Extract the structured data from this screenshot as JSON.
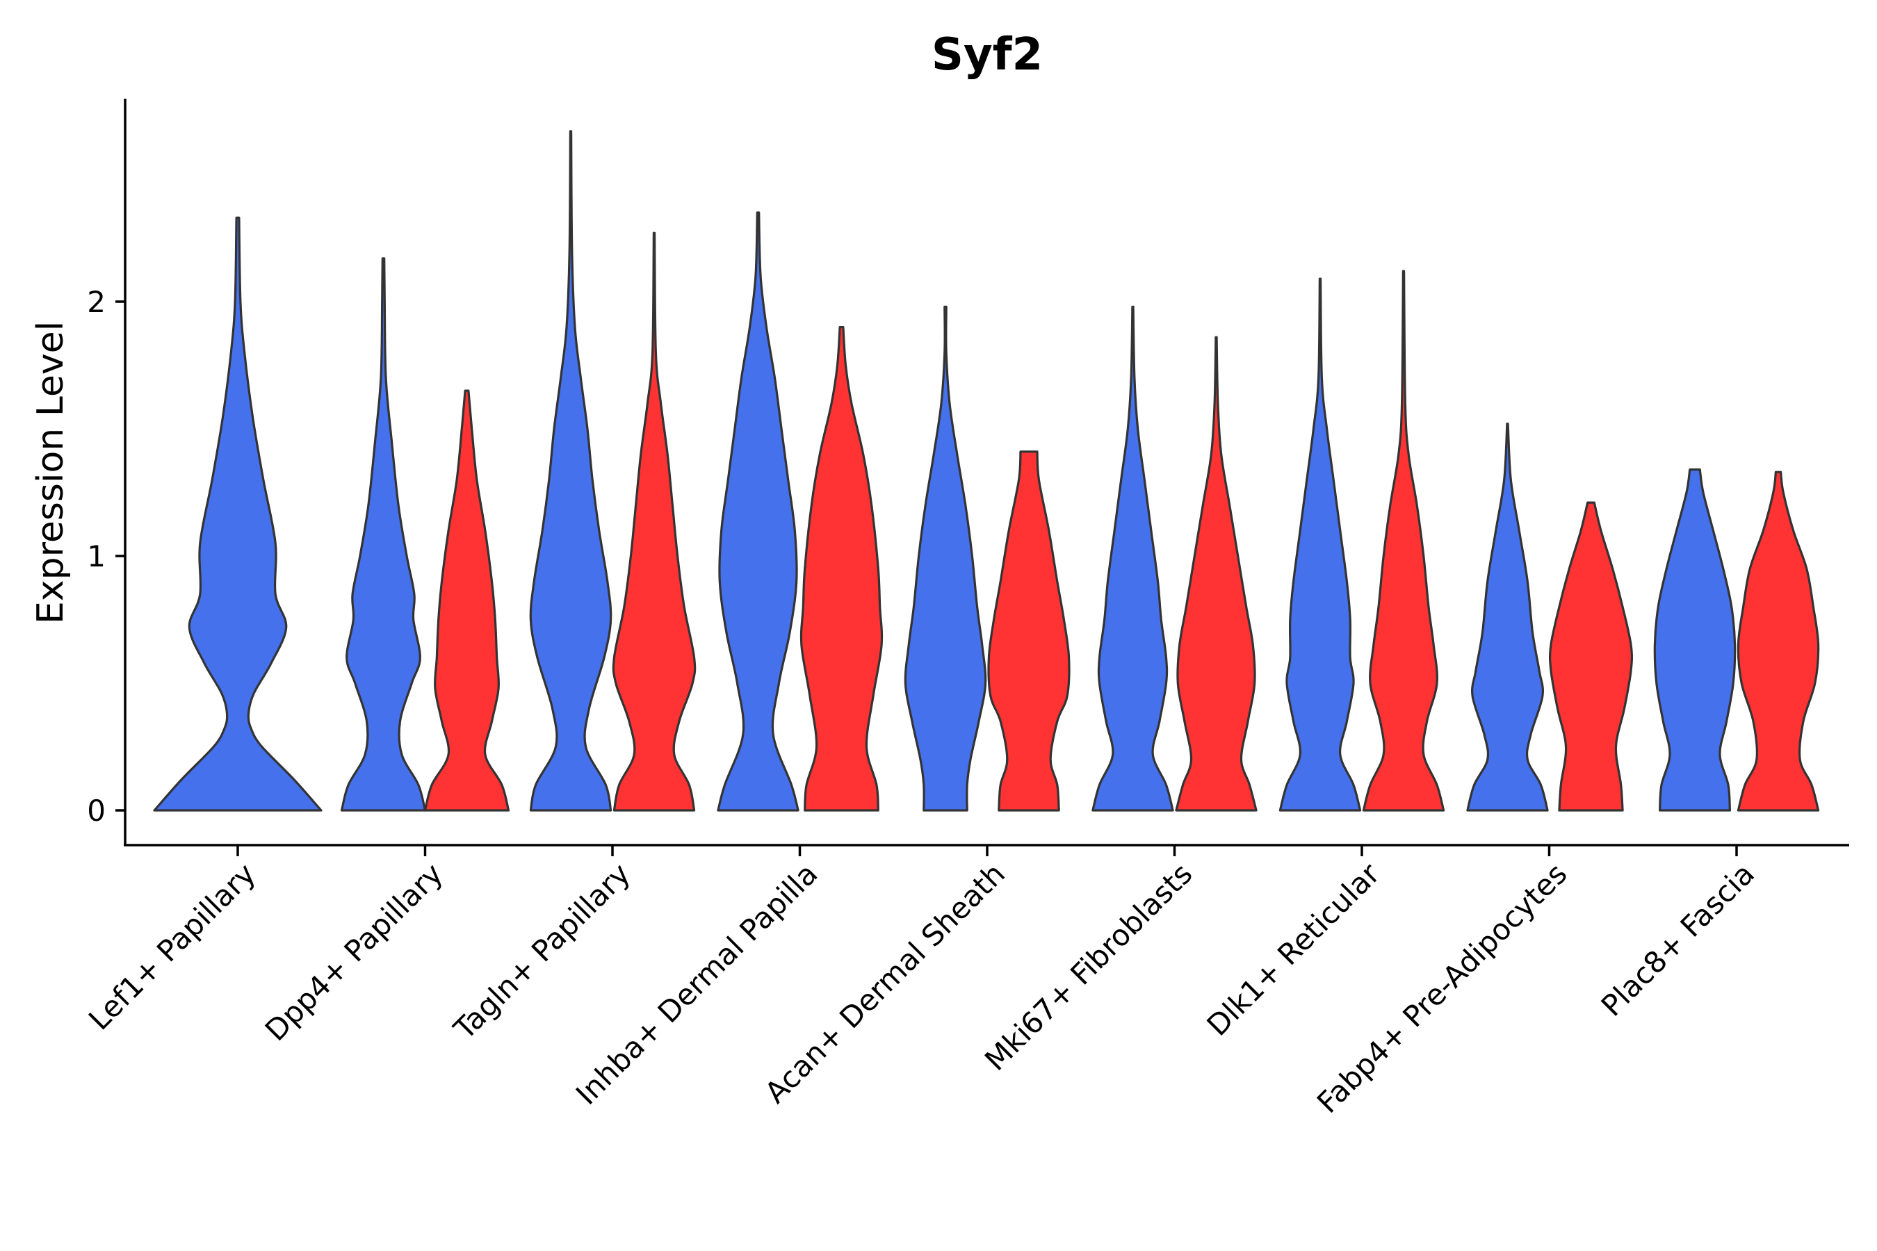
{
  "chart_data": {
    "type": "violin",
    "title": "Syf2",
    "xlabel": "",
    "ylabel": "Expression Level",
    "ylim": [
      -0.135,
      2.8
    ],
    "yticks": [
      0,
      1,
      2
    ],
    "grid": false,
    "legend": "none",
    "colors": {
      "group1": "#4571EC",
      "group2": "#FF3333",
      "outline": "#333333"
    },
    "categories": [
      "Lef1+ Papillary",
      "Dpp4+ Papillary",
      "Tagln+ Papillary",
      "Inhba+ Dermal Papilla",
      "Acan+ Dermal Sheath",
      "Mki67+ Fibroblasts",
      "Dlk1+ Reticular",
      "Fabp4+ Pre-Adipocytes",
      "Plac8+ Fascia"
    ],
    "violins": [
      {
        "category": "Lef1+ Papillary",
        "group": "group1",
        "max": 2.33,
        "profile": [
          [
            0,
            0.62
          ],
          [
            0.12,
            0.42
          ],
          [
            0.25,
            0.18
          ],
          [
            0.32,
            0.1
          ],
          [
            0.38,
            0.08
          ],
          [
            0.46,
            0.12
          ],
          [
            0.58,
            0.25
          ],
          [
            0.72,
            0.36
          ],
          [
            0.85,
            0.28
          ],
          [
            1.05,
            0.28
          ],
          [
            1.3,
            0.19
          ],
          [
            1.55,
            0.11
          ],
          [
            1.8,
            0.05
          ],
          [
            2.0,
            0.02
          ],
          [
            2.33,
            0.01
          ]
        ]
      },
      {
        "category": "Dpp4+ Papillary",
        "group": "group1",
        "max": 2.17,
        "profile": [
          [
            0,
            0.5
          ],
          [
            0.1,
            0.42
          ],
          [
            0.22,
            0.22
          ],
          [
            0.35,
            0.2
          ],
          [
            0.5,
            0.34
          ],
          [
            0.6,
            0.44
          ],
          [
            0.75,
            0.36
          ],
          [
            0.85,
            0.37
          ],
          [
            1.0,
            0.28
          ],
          [
            1.2,
            0.18
          ],
          [
            1.45,
            0.1
          ],
          [
            1.7,
            0.03
          ],
          [
            2.0,
            0.015
          ],
          [
            2.17,
            0.01
          ]
        ]
      },
      {
        "category": "Dpp4+ Papillary",
        "group": "group2",
        "max": 1.65,
        "profile": [
          [
            0,
            0.5
          ],
          [
            0.1,
            0.42
          ],
          [
            0.22,
            0.22
          ],
          [
            0.35,
            0.3
          ],
          [
            0.48,
            0.38
          ],
          [
            0.6,
            0.36
          ],
          [
            0.75,
            0.34
          ],
          [
            0.9,
            0.3
          ],
          [
            1.1,
            0.22
          ],
          [
            1.3,
            0.12
          ],
          [
            1.5,
            0.06
          ],
          [
            1.65,
            0.02
          ]
        ]
      },
      {
        "category": "Tagln+ Papillary",
        "group": "group1",
        "max": 2.67,
        "profile": [
          [
            0,
            0.48
          ],
          [
            0.1,
            0.42
          ],
          [
            0.25,
            0.18
          ],
          [
            0.4,
            0.22
          ],
          [
            0.6,
            0.4
          ],
          [
            0.75,
            0.48
          ],
          [
            0.9,
            0.44
          ],
          [
            1.1,
            0.34
          ],
          [
            1.3,
            0.26
          ],
          [
            1.5,
            0.2
          ],
          [
            1.7,
            0.12
          ],
          [
            1.9,
            0.05
          ],
          [
            2.2,
            0.015
          ],
          [
            2.67,
            0.005
          ]
        ]
      },
      {
        "category": "Tagln+ Papillary",
        "group": "group2",
        "max": 2.27,
        "profile": [
          [
            0,
            0.48
          ],
          [
            0.1,
            0.42
          ],
          [
            0.22,
            0.24
          ],
          [
            0.35,
            0.3
          ],
          [
            0.5,
            0.46
          ],
          [
            0.6,
            0.48
          ],
          [
            0.8,
            0.36
          ],
          [
            1.0,
            0.28
          ],
          [
            1.2,
            0.22
          ],
          [
            1.4,
            0.16
          ],
          [
            1.6,
            0.08
          ],
          [
            1.8,
            0.02
          ],
          [
            2.27,
            0.005
          ]
        ]
      },
      {
        "category": "Inhba+ Dermal Papilla",
        "group": "group1",
        "max": 2.35,
        "profile": [
          [
            0,
            0.48
          ],
          [
            0.1,
            0.4
          ],
          [
            0.3,
            0.18
          ],
          [
            0.5,
            0.25
          ],
          [
            0.7,
            0.38
          ],
          [
            0.9,
            0.46
          ],
          [
            1.1,
            0.44
          ],
          [
            1.3,
            0.36
          ],
          [
            1.5,
            0.28
          ],
          [
            1.7,
            0.2
          ],
          [
            1.9,
            0.1
          ],
          [
            2.1,
            0.03
          ],
          [
            2.35,
            0.01
          ]
        ]
      },
      {
        "category": "Inhba+ Dermal Papilla",
        "group": "group2",
        "max": 1.9,
        "profile": [
          [
            0,
            0.44
          ],
          [
            0.1,
            0.42
          ],
          [
            0.25,
            0.3
          ],
          [
            0.45,
            0.38
          ],
          [
            0.65,
            0.48
          ],
          [
            0.8,
            0.46
          ],
          [
            0.95,
            0.44
          ],
          [
            1.2,
            0.36
          ],
          [
            1.4,
            0.26
          ],
          [
            1.6,
            0.12
          ],
          [
            1.75,
            0.05
          ],
          [
            1.9,
            0.02
          ]
        ]
      },
      {
        "category": "Acan+ Dermal Sheath",
        "group": "group1",
        "max": 1.98,
        "profile": [
          [
            0,
            0.26
          ],
          [
            0.1,
            0.26
          ],
          [
            0.2,
            0.3
          ],
          [
            0.35,
            0.4
          ],
          [
            0.5,
            0.48
          ],
          [
            0.65,
            0.44
          ],
          [
            0.8,
            0.38
          ],
          [
            1.0,
            0.32
          ],
          [
            1.2,
            0.24
          ],
          [
            1.4,
            0.14
          ],
          [
            1.6,
            0.05
          ],
          [
            1.8,
            0.01
          ],
          [
            1.98,
            0.01
          ]
        ]
      },
      {
        "category": "Acan+ Dermal Sheath",
        "group": "group2",
        "max": 1.41,
        "profile": [
          [
            0,
            0.36
          ],
          [
            0.1,
            0.34
          ],
          [
            0.2,
            0.26
          ],
          [
            0.35,
            0.34
          ],
          [
            0.45,
            0.46
          ],
          [
            0.6,
            0.48
          ],
          [
            0.75,
            0.42
          ],
          [
            0.9,
            0.34
          ],
          [
            1.1,
            0.24
          ],
          [
            1.3,
            0.12
          ],
          [
            1.41,
            0.1
          ]
        ]
      },
      {
        "category": "Mki67+ Fibroblasts",
        "group": "group1",
        "max": 1.98,
        "profile": [
          [
            0,
            0.48
          ],
          [
            0.1,
            0.4
          ],
          [
            0.22,
            0.24
          ],
          [
            0.35,
            0.32
          ],
          [
            0.5,
            0.4
          ],
          [
            0.6,
            0.4
          ],
          [
            0.75,
            0.34
          ],
          [
            0.9,
            0.3
          ],
          [
            1.1,
            0.22
          ],
          [
            1.3,
            0.14
          ],
          [
            1.5,
            0.06
          ],
          [
            1.7,
            0.02
          ],
          [
            1.98,
            0.005
          ]
        ]
      },
      {
        "category": "Mki67+ Fibroblasts",
        "group": "group2",
        "max": 1.86,
        "profile": [
          [
            0,
            0.48
          ],
          [
            0.1,
            0.4
          ],
          [
            0.2,
            0.3
          ],
          [
            0.35,
            0.38
          ],
          [
            0.5,
            0.46
          ],
          [
            0.65,
            0.44
          ],
          [
            0.8,
            0.36
          ],
          [
            1.0,
            0.26
          ],
          [
            1.2,
            0.16
          ],
          [
            1.4,
            0.06
          ],
          [
            1.6,
            0.02
          ],
          [
            1.86,
            0.005
          ]
        ]
      },
      {
        "category": "Dlk1+ Reticular",
        "group": "group1",
        "max": 2.09,
        "profile": [
          [
            0,
            0.48
          ],
          [
            0.1,
            0.4
          ],
          [
            0.22,
            0.24
          ],
          [
            0.35,
            0.32
          ],
          [
            0.5,
            0.4
          ],
          [
            0.6,
            0.36
          ],
          [
            0.75,
            0.36
          ],
          [
            0.9,
            0.32
          ],
          [
            1.1,
            0.24
          ],
          [
            1.3,
            0.16
          ],
          [
            1.5,
            0.08
          ],
          [
            1.7,
            0.02
          ],
          [
            2.09,
            0.005
          ]
        ]
      },
      {
        "category": "Dlk1+ Reticular",
        "group": "group2",
        "max": 2.12,
        "profile": [
          [
            0,
            0.48
          ],
          [
            0.1,
            0.4
          ],
          [
            0.22,
            0.24
          ],
          [
            0.35,
            0.28
          ],
          [
            0.5,
            0.4
          ],
          [
            0.65,
            0.36
          ],
          [
            0.8,
            0.3
          ],
          [
            1.0,
            0.24
          ],
          [
            1.2,
            0.16
          ],
          [
            1.4,
            0.06
          ],
          [
            1.6,
            0.02
          ],
          [
            2.12,
            0.005
          ]
        ]
      },
      {
        "category": "Fabp4+ Pre-Adipocytes",
        "group": "group1",
        "max": 1.52,
        "profile": [
          [
            0,
            0.48
          ],
          [
            0.1,
            0.4
          ],
          [
            0.2,
            0.24
          ],
          [
            0.3,
            0.28
          ],
          [
            0.45,
            0.42
          ],
          [
            0.55,
            0.38
          ],
          [
            0.7,
            0.3
          ],
          [
            0.9,
            0.24
          ],
          [
            1.1,
            0.14
          ],
          [
            1.3,
            0.04
          ],
          [
            1.52,
            0.005
          ]
        ]
      },
      {
        "category": "Fabp4+ Pre-Adipocytes",
        "group": "group2",
        "max": 1.21,
        "profile": [
          [
            0,
            0.38
          ],
          [
            0.1,
            0.36
          ],
          [
            0.25,
            0.3
          ],
          [
            0.4,
            0.4
          ],
          [
            0.55,
            0.48
          ],
          [
            0.65,
            0.48
          ],
          [
            0.8,
            0.38
          ],
          [
            0.95,
            0.26
          ],
          [
            1.1,
            0.12
          ],
          [
            1.21,
            0.04
          ]
        ]
      },
      {
        "category": "Plac8+ Fascia",
        "group": "group1",
        "max": 1.34,
        "profile": [
          [
            0,
            0.42
          ],
          [
            0.1,
            0.4
          ],
          [
            0.22,
            0.3
          ],
          [
            0.35,
            0.38
          ],
          [
            0.5,
            0.46
          ],
          [
            0.65,
            0.48
          ],
          [
            0.8,
            0.44
          ],
          [
            0.95,
            0.34
          ],
          [
            1.1,
            0.22
          ],
          [
            1.25,
            0.1
          ],
          [
            1.34,
            0.06
          ]
        ]
      },
      {
        "category": "Plac8+ Fascia",
        "group": "group2",
        "max": 1.33,
        "profile": [
          [
            0,
            0.48
          ],
          [
            0.1,
            0.4
          ],
          [
            0.2,
            0.26
          ],
          [
            0.35,
            0.3
          ],
          [
            0.5,
            0.44
          ],
          [
            0.65,
            0.48
          ],
          [
            0.8,
            0.42
          ],
          [
            0.95,
            0.34
          ],
          [
            1.1,
            0.18
          ],
          [
            1.25,
            0.06
          ],
          [
            1.33,
            0.03
          ]
        ]
      }
    ]
  }
}
